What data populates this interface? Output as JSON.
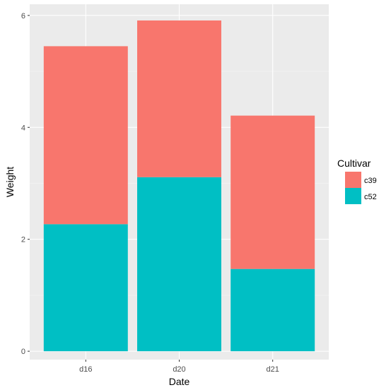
{
  "chart_data": {
    "type": "bar",
    "stacked": true,
    "categories": [
      "d16",
      "d20",
      "d21"
    ],
    "series": [
      {
        "name": "c52",
        "values": [
          2.27,
          3.11,
          1.47
        ],
        "color": "#00BFC4"
      },
      {
        "name": "c39",
        "values": [
          3.18,
          2.8,
          2.74
        ],
        "color": "#F8766D"
      }
    ],
    "xlabel": "Date",
    "ylabel": "Weight",
    "ylim": [
      -0.15,
      6.2
    ],
    "yticks": [
      0,
      2,
      4,
      6
    ],
    "grid": true,
    "legend": {
      "title": "Cultivar",
      "position": "right",
      "entries": [
        "c39",
        "c52"
      ]
    },
    "colors": {
      "panel": "#EBEBEB",
      "grid_major": "#FFFFFF",
      "grid_minor": "#F5F5F5"
    }
  }
}
